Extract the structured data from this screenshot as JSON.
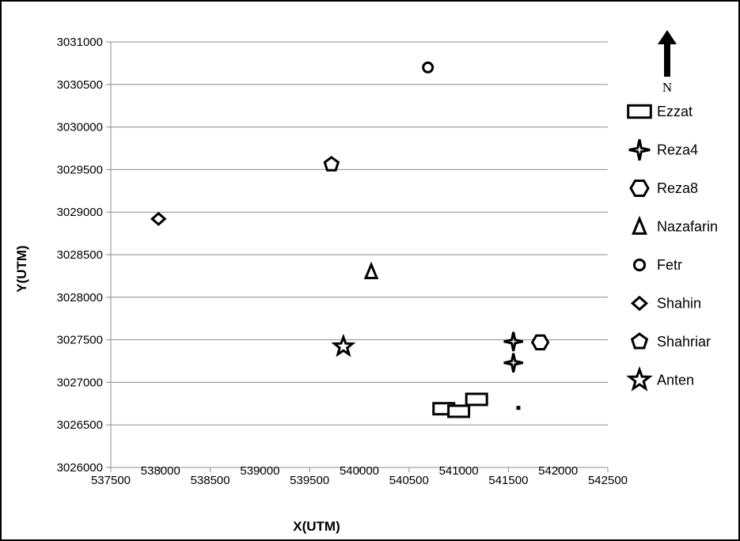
{
  "chart_data": {
    "type": "scatter",
    "xlabel": "X(UTM)",
    "ylabel": "Y(UTM)",
    "xlim": [
      537500,
      542500
    ],
    "ylim": [
      3026000,
      3031000
    ],
    "xticks": [
      537500,
      538000,
      538500,
      539000,
      539500,
      540000,
      540500,
      541000,
      541500,
      542000,
      542500
    ],
    "yticks": [
      3026000,
      3026500,
      3027000,
      3027500,
      3028000,
      3028500,
      3029000,
      3029500,
      3030000,
      3030500,
      3031000
    ],
    "grid": "horizontal",
    "legend_position": "right",
    "north_arrow_label": "N",
    "series": [
      {
        "name": "Ezzat",
        "marker": "rectangle",
        "points": [
          [
            540850,
            3026690
          ],
          [
            541000,
            3026660
          ],
          [
            541180,
            3026800
          ]
        ]
      },
      {
        "name": "Reza4",
        "marker": "star4",
        "points": [
          [
            541550,
            3027480
          ],
          [
            541550,
            3027230
          ]
        ]
      },
      {
        "name": "Reza8",
        "marker": "hexagon",
        "points": [
          [
            541820,
            3027470
          ]
        ]
      },
      {
        "name": "Nazafarin",
        "marker": "triangle",
        "points": [
          [
            540120,
            3028300
          ]
        ]
      },
      {
        "name": "Fetr",
        "marker": "circle",
        "points": [
          [
            540690,
            3030700
          ]
        ]
      },
      {
        "name": "Shahin",
        "marker": "diamond",
        "points": [
          [
            537980,
            3028920
          ]
        ]
      },
      {
        "name": "Shahriar",
        "marker": "pentagon",
        "points": [
          [
            539720,
            3029560
          ]
        ]
      },
      {
        "name": "Anten",
        "marker": "star5",
        "points": [
          [
            539840,
            3027420
          ]
        ]
      },
      {
        "name": "",
        "marker": "dot",
        "points": [
          [
            541600,
            3026700
          ]
        ]
      }
    ]
  }
}
